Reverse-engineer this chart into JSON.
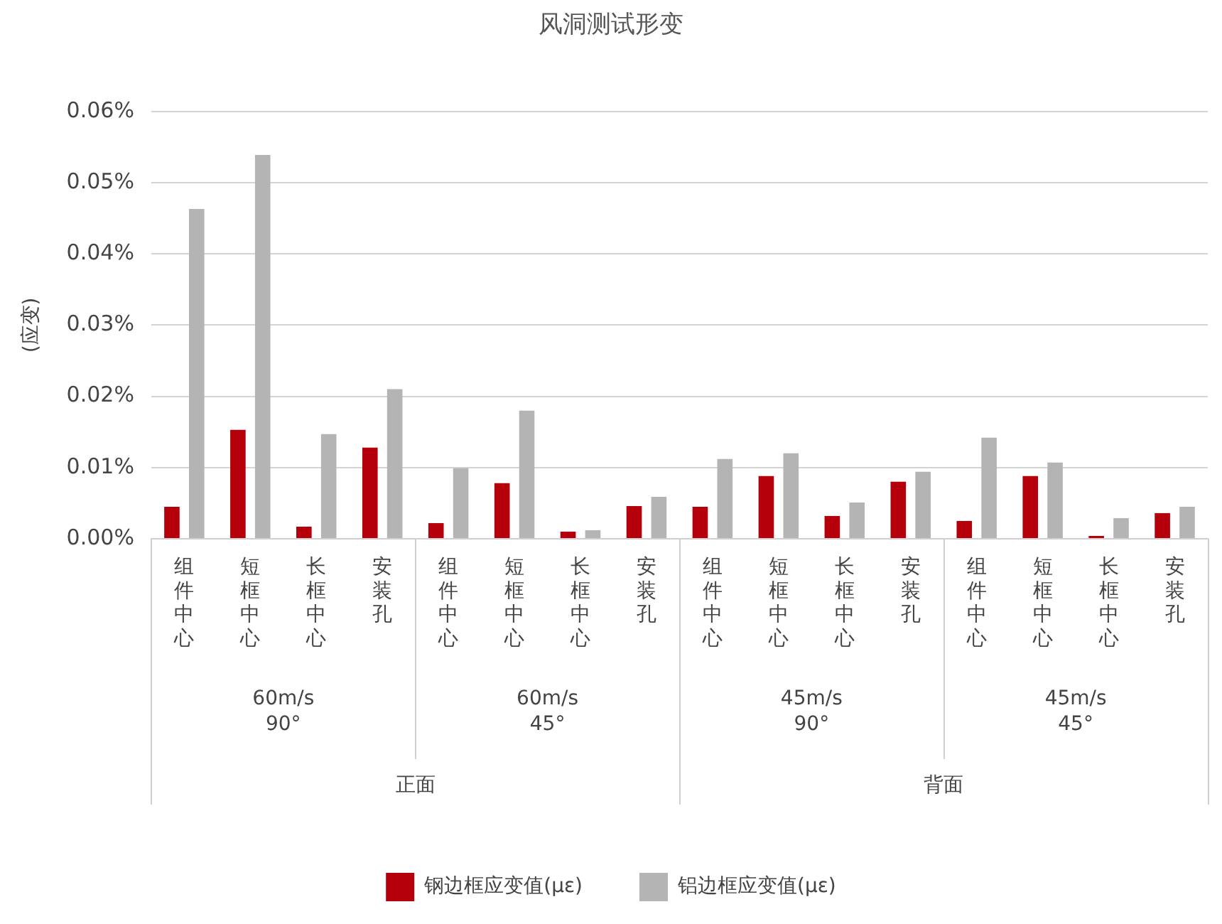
{
  "chart_data": {
    "type": "bar",
    "title": "风洞测试形变",
    "ylabel": "(应变)",
    "categories": [
      "组件中心",
      "短框中心",
      "长框中心",
      "安装孔",
      "组件中心",
      "短框中心",
      "长框中心",
      "安装孔",
      "组件中心",
      "短框中心",
      "长框中心",
      "安装孔",
      "组件中心",
      "短框中心",
      "长框中心",
      "安装孔"
    ],
    "series": [
      {
        "name": "钢边框应变值(με)",
        "color": "#b5000c",
        "values": [
          0.0045,
          0.0153,
          0.0017,
          0.0128,
          0.0022,
          0.0078,
          0.001,
          0.0046,
          0.0045,
          0.0088,
          0.0032,
          0.008,
          0.0025,
          0.0088,
          0.0004,
          0.0036
        ]
      },
      {
        "name": "铝边框应变值(με)",
        "color": "#b4b4b4",
        "values": [
          0.0463,
          0.0539,
          0.0147,
          0.021,
          0.0099,
          0.018,
          0.0012,
          0.0059,
          0.0112,
          0.012,
          0.0051,
          0.0094,
          0.0142,
          0.0107,
          0.0029,
          0.0045
        ]
      }
    ],
    "ylim": [
      0,
      0.06
    ],
    "yticks": [
      {
        "value": 0,
        "label": "0.00%"
      },
      {
        "value": 0.01,
        "label": "0.01%"
      },
      {
        "value": 0.02,
        "label": "0.02%"
      },
      {
        "value": 0.03,
        "label": "0.03%"
      },
      {
        "value": 0.04,
        "label": "0.04%"
      },
      {
        "value": 0.05,
        "label": "0.05%"
      },
      {
        "value": 0.06,
        "label": "0.06%"
      }
    ],
    "annotations": [
      "60m/s\n90°",
      "60m/s\n45°",
      "45m/s\n90°",
      "45m/s\n45°",
      "正面",
      "背面"
    ],
    "grid": "y",
    "legend": "bottom"
  }
}
